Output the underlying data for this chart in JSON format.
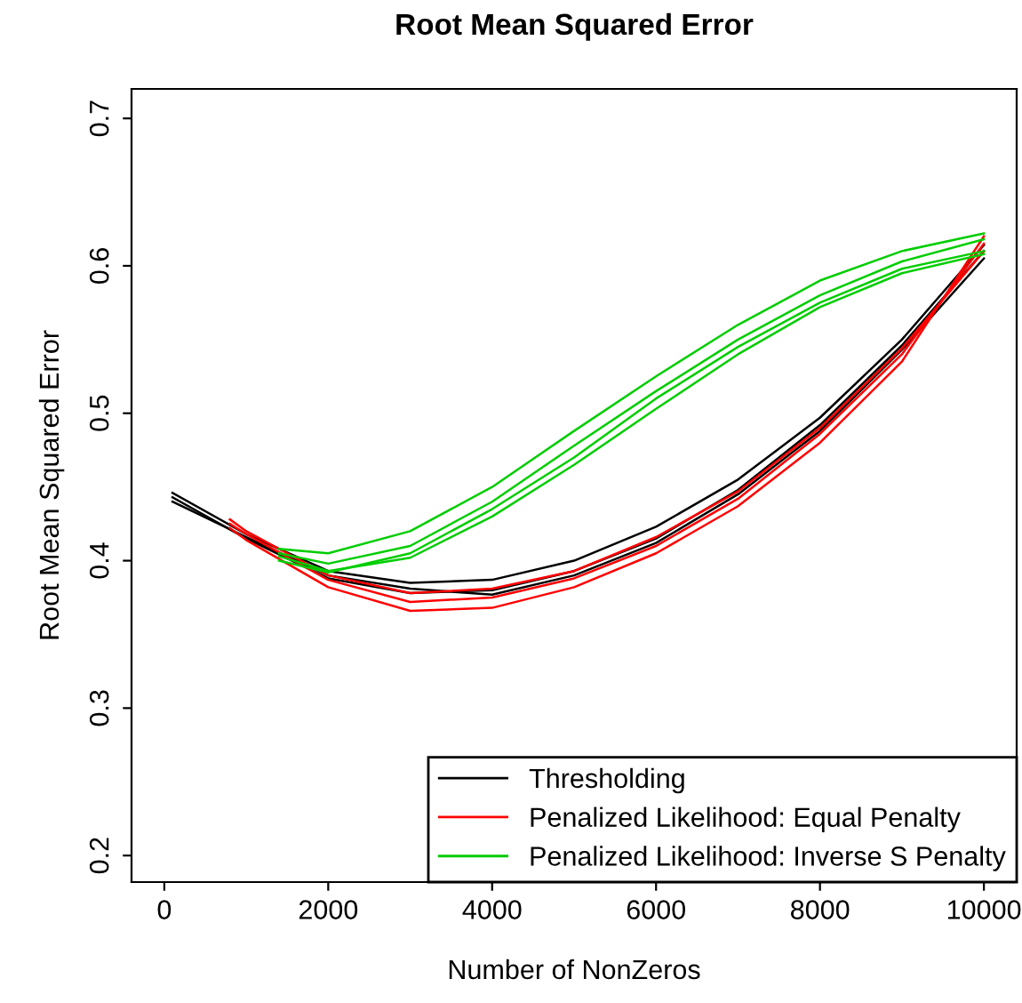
{
  "chart_data": {
    "type": "line",
    "title": "Root Mean Squared Error",
    "xlabel": "Number of NonZeros",
    "ylabel": "Root Mean Squared Error",
    "xlim": [
      -400,
      10400
    ],
    "ylim": [
      0.182,
      0.72
    ],
    "xticks": [
      0,
      2000,
      4000,
      6000,
      8000,
      10000
    ],
    "yticks": [
      0.2,
      0.3,
      0.4,
      0.5,
      0.6,
      0.7
    ],
    "grid": false,
    "legend": "bottom right",
    "line_style": "solid",
    "marker": "none",
    "series": [
      {
        "name": "Thresholding",
        "color": "#000000",
        "x": [
          100,
          1000,
          2000,
          3000,
          4000,
          5000,
          6000,
          7000,
          8000,
          9000,
          10000
        ],
        "values": [
          0.446,
          0.418,
          0.393,
          0.385,
          0.387,
          0.4,
          0.423,
          0.455,
          0.497,
          0.55,
          0.614
        ]
      },
      {
        "color": "#000000",
        "x": [
          100,
          1000,
          2000,
          3000,
          4000,
          5000,
          6000,
          7000,
          8000,
          9000,
          10000
        ],
        "values": [
          0.443,
          0.415,
          0.388,
          0.378,
          0.38,
          0.393,
          0.415,
          0.448,
          0.492,
          0.546,
          0.61
        ]
      },
      {
        "color": "#000000",
        "x": [
          100,
          1000,
          2000,
          3000,
          4000,
          5000,
          6000,
          7000,
          8000,
          9000,
          10000
        ],
        "values": [
          0.44,
          0.416,
          0.39,
          0.381,
          0.377,
          0.39,
          0.412,
          0.445,
          0.488,
          0.543,
          0.605
        ]
      },
      {
        "name": "Penalized Likelihood: Equal Penalty",
        "color": "#ff0000",
        "x": [
          800,
          1000,
          2000,
          3000,
          4000,
          5000,
          6000,
          7000,
          8000,
          9000,
          10000
        ],
        "values": [
          0.425,
          0.418,
          0.387,
          0.372,
          0.375,
          0.388,
          0.41,
          0.442,
          0.486,
          0.54,
          0.615
        ]
      },
      {
        "color": "#ff0000",
        "x": [
          800,
          1000,
          2000,
          3000,
          4000,
          5000,
          6000,
          7000,
          8000,
          9000,
          10000
        ],
        "values": [
          0.422,
          0.414,
          0.382,
          0.366,
          0.368,
          0.382,
          0.405,
          0.437,
          0.48,
          0.535,
          0.62
        ]
      },
      {
        "color": "#ff0000",
        "x": [
          800,
          1000,
          2000,
          3000,
          4000,
          5000,
          6000,
          7000,
          8000,
          9000,
          10000
        ],
        "values": [
          0.428,
          0.42,
          0.39,
          0.378,
          0.381,
          0.393,
          0.416,
          0.447,
          0.49,
          0.544,
          0.61
        ]
      },
      {
        "name": "Penalized Likelihood: Inverse S Penalty",
        "color": "#00cd00",
        "x": [
          1400,
          2000,
          3000,
          4000,
          5000,
          6000,
          7000,
          8000,
          9000,
          10000
        ],
        "values": [
          0.408,
          0.405,
          0.42,
          0.45,
          0.488,
          0.525,
          0.56,
          0.59,
          0.61,
          0.622
        ]
      },
      {
        "color": "#00cd00",
        "x": [
          1400,
          2000,
          3000,
          4000,
          5000,
          6000,
          7000,
          8000,
          9000,
          10000
        ],
        "values": [
          0.405,
          0.398,
          0.41,
          0.44,
          0.478,
          0.515,
          0.55,
          0.58,
          0.603,
          0.618
        ]
      },
      {
        "color": "#00cd00",
        "x": [
          1400,
          2000,
          3000,
          4000,
          5000,
          6000,
          7000,
          8000,
          9000,
          10000
        ],
        "values": [
          0.403,
          0.393,
          0.402,
          0.43,
          0.465,
          0.503,
          0.54,
          0.572,
          0.595,
          0.608
        ]
      },
      {
        "color": "#00cd00",
        "x": [
          1400,
          2000,
          3000,
          4000,
          5000,
          6000,
          7000,
          8000,
          9000,
          10000
        ],
        "values": [
          0.4,
          0.392,
          0.405,
          0.435,
          0.47,
          0.51,
          0.545,
          0.575,
          0.598,
          0.61
        ]
      }
    ]
  }
}
